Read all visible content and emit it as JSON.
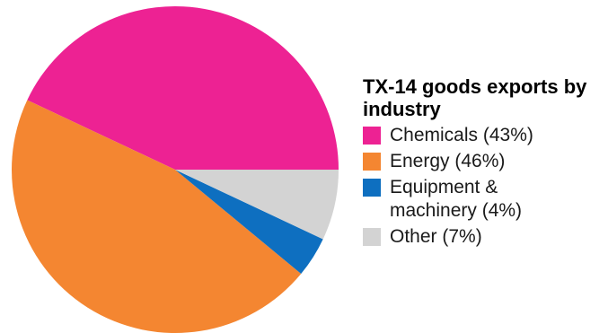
{
  "chart_data": {
    "type": "pie",
    "title": "TX-14 goods exports by industry",
    "slices": [
      {
        "label": "Chemicals (43%)",
        "value": 43,
        "color": "#ed2293"
      },
      {
        "label": "Energy (46%)",
        "value": 46,
        "color": "#f48631"
      },
      {
        "label": "Equipment & machinery (4%)",
        "value": 4,
        "color": "#0e6fc0"
      },
      {
        "label": "Other (7%)",
        "value": 7,
        "color": "#d3d3d3"
      }
    ],
    "legend_position": "right"
  }
}
